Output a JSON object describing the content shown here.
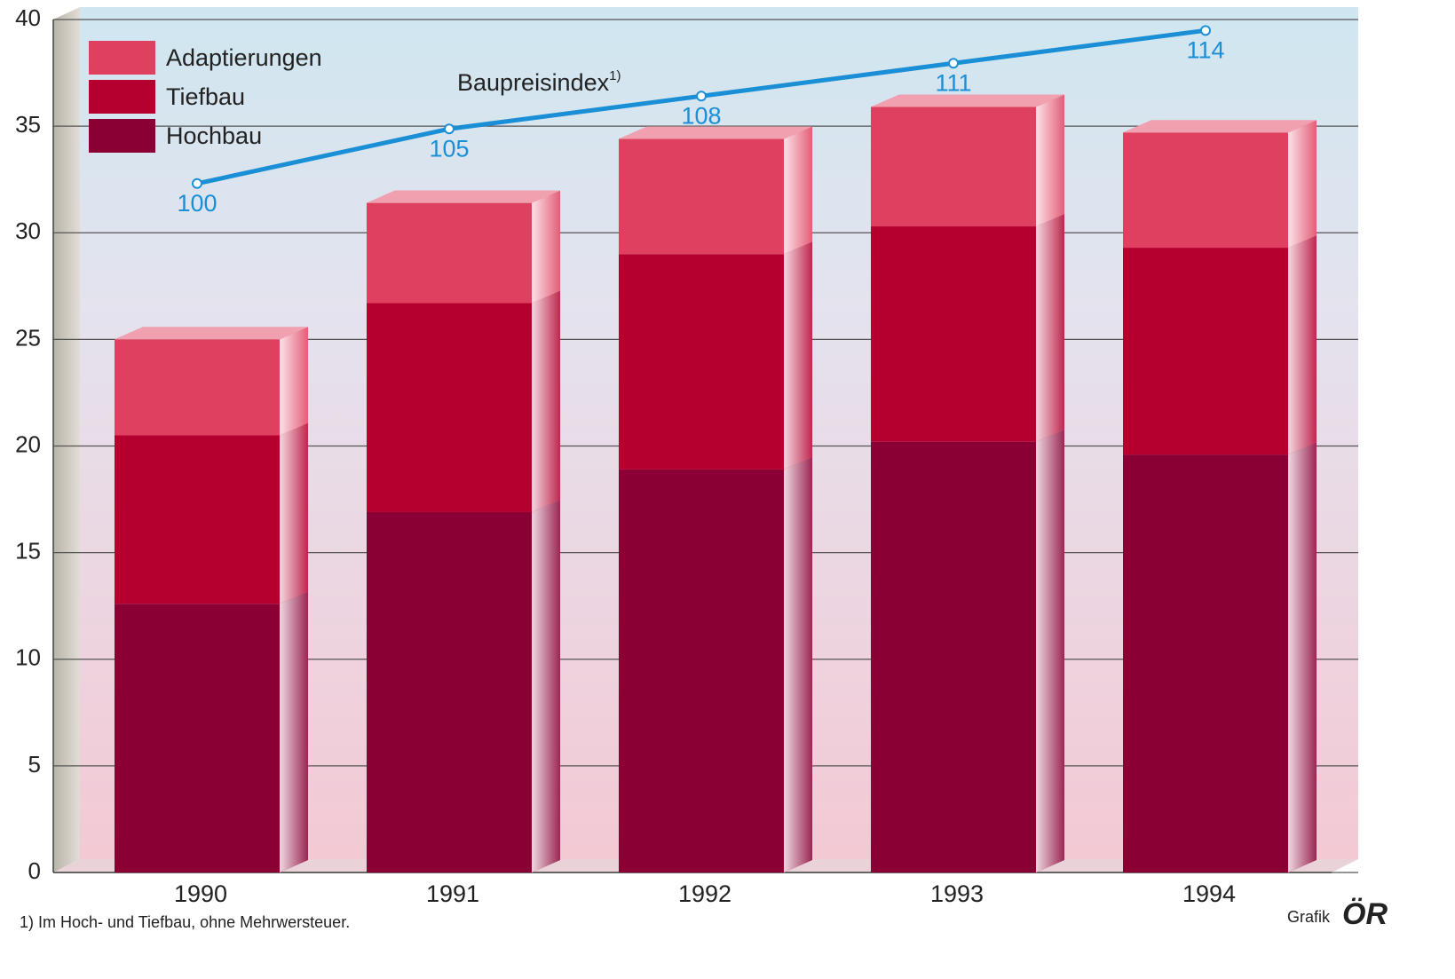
{
  "chart_data": {
    "type": "bar",
    "stacked": true,
    "categories": [
      "1990",
      "1991",
      "1992",
      "1993",
      "1994"
    ],
    "series": [
      {
        "name": "Hochbau",
        "color": "#8a0035",
        "values": [
          12.6,
          16.9,
          18.9,
          20.2,
          19.6
        ]
      },
      {
        "name": "Tiefbau",
        "color": "#b5002f",
        "values": [
          7.9,
          9.8,
          10.1,
          10.1,
          9.7
        ]
      },
      {
        "name": "Adaptierungen",
        "color": "#e0405f",
        "values": [
          4.5,
          4.7,
          5.4,
          5.6,
          5.4
        ]
      },
      {
        "name": "Baupreisindex",
        "name_suffix": "1)",
        "type": "line",
        "axis": "y2",
        "color": "#1a8fd6",
        "values": [
          100,
          105,
          108,
          111,
          114
        ]
      }
    ],
    "ylim": [
      0,
      40
    ],
    "yticks": [
      0,
      5,
      10,
      15,
      20,
      25,
      30,
      35,
      40
    ],
    "y2lim": [
      37,
      115
    ],
    "grid": true,
    "legend": "upper left",
    "footnote": "1) Im Hoch- und Tiefbau, ohne Mehrwersteuer.",
    "source": "Grafik",
    "logo": "ÖR"
  }
}
